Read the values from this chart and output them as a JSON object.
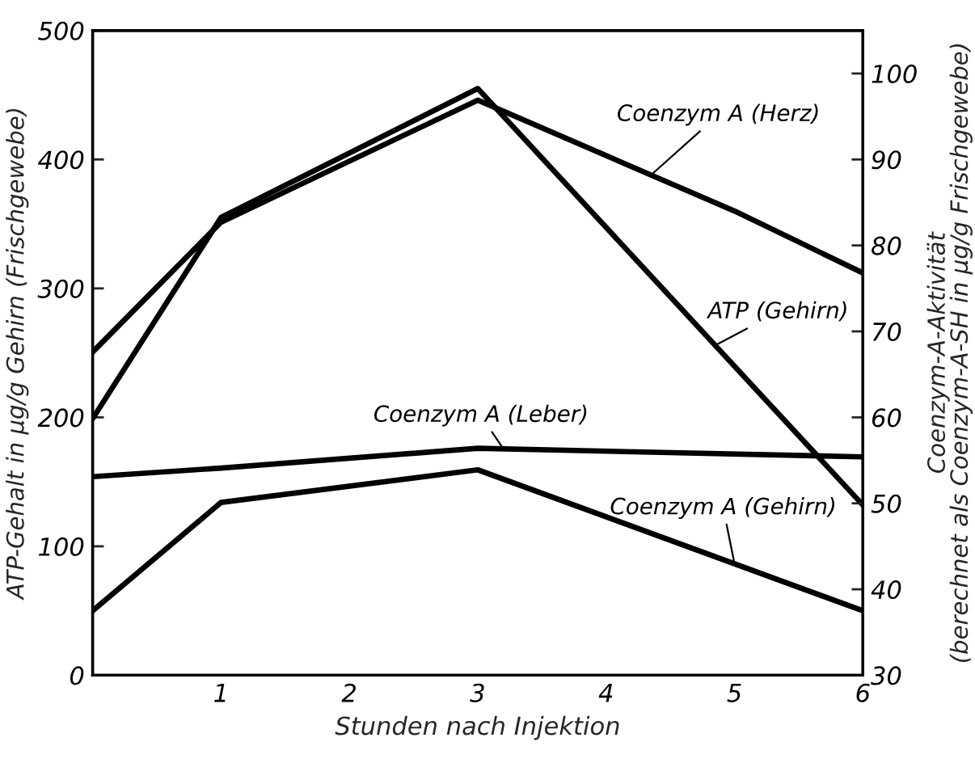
{
  "chart_data": {
    "type": "line",
    "xlabel": "Stunden nach Injektion",
    "ylabel": "ATP-Gehalt in µg/g Gehirn (Frischgewebe)",
    "y2label": "Coenzym-A-Aktivität\n(berechnet als Coenzym-A-SH in µg/g Frischgewebe)",
    "xlim": [
      0,
      6
    ],
    "xticks": [
      1,
      2,
      3,
      4,
      5,
      6
    ],
    "ylim": [
      0,
      500
    ],
    "yticks": [
      0,
      100,
      200,
      300,
      400,
      500
    ],
    "y2lim": [
      30,
      105
    ],
    "y2ticks": [
      30,
      40,
      50,
      60,
      70,
      80,
      90,
      100
    ],
    "grid": false,
    "legend": false,
    "marker": "none",
    "line_style": "solid",
    "series": [
      {
        "name": "Coenzym A (Herz)",
        "color": "#000000",
        "axis": "y2",
        "x": [
          0,
          1,
          3,
          5,
          6
        ],
        "values": [
          67.6,
          82.7,
          96.9,
          84,
          76.8
        ]
      },
      {
        "name": "ATP (Gehirn)",
        "color": "#000000",
        "x": [
          0,
          1,
          3,
          6
        ],
        "values": [
          199,
          355,
          455,
          132
        ]
      },
      {
        "name": "Coenzym A (Leber)",
        "color": "#000000",
        "axis": "y2",
        "x": [
          0,
          1,
          3,
          6
        ],
        "values": [
          53.1,
          54.1,
          56.4,
          55.4
        ]
      },
      {
        "name": "Coenzym A (Gehirn)",
        "color": "#000000",
        "axis": "y2",
        "x": [
          0,
          1,
          3,
          6
        ],
        "values": [
          37.5,
          50.1,
          53.9,
          37.5
        ]
      }
    ]
  }
}
